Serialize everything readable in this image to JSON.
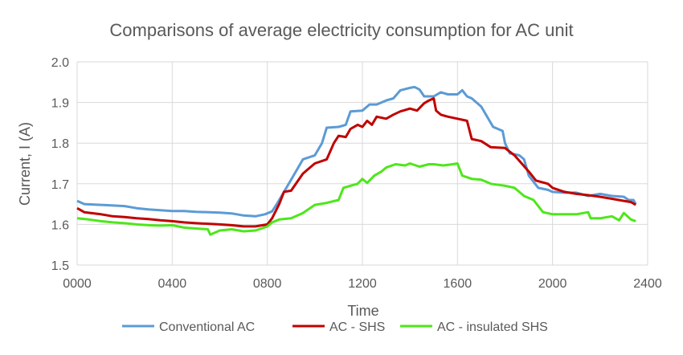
{
  "chart_data": {
    "type": "line",
    "title": "Comparisons of average electricity consumption for AC unit",
    "xlabel": "Time",
    "ylabel": "Current, I (A)",
    "xlim": [
      0,
      2400
    ],
    "ylim": [
      1.5,
      2.0
    ],
    "x_ticks": [
      0,
      400,
      800,
      1200,
      1600,
      2000,
      2400
    ],
    "x_tick_labels": [
      "0000",
      "0400",
      "0800",
      "1200",
      "1600",
      "2000",
      "2400"
    ],
    "y_ticks": [
      1.5,
      1.6,
      1.7,
      1.8,
      1.9,
      2.0
    ],
    "y_tick_labels": [
      "1.5",
      "1.6",
      "1.7",
      "1.8",
      "1.9",
      "2.0"
    ],
    "grid": true,
    "legend_position": "bottom",
    "series": [
      {
        "name": "Conventional AC",
        "color": "#5b9bd5",
        "points": [
          [
            0,
            1.658
          ],
          [
            30,
            1.65
          ],
          [
            100,
            1.648
          ],
          [
            200,
            1.645
          ],
          [
            250,
            1.64
          ],
          [
            300,
            1.637
          ],
          [
            400,
            1.633
          ],
          [
            450,
            1.633
          ],
          [
            500,
            1.631
          ],
          [
            600,
            1.629
          ],
          [
            650,
            1.627
          ],
          [
            700,
            1.622
          ],
          [
            750,
            1.62
          ],
          [
            790,
            1.625
          ],
          [
            820,
            1.632
          ],
          [
            840,
            1.65
          ],
          [
            870,
            1.68
          ],
          [
            900,
            1.71
          ],
          [
            950,
            1.76
          ],
          [
            1000,
            1.77
          ],
          [
            1030,
            1.8
          ],
          [
            1050,
            1.838
          ],
          [
            1100,
            1.84
          ],
          [
            1130,
            1.845
          ],
          [
            1150,
            1.878
          ],
          [
            1200,
            1.88
          ],
          [
            1230,
            1.895
          ],
          [
            1260,
            1.895
          ],
          [
            1300,
            1.905
          ],
          [
            1330,
            1.91
          ],
          [
            1360,
            1.93
          ],
          [
            1400,
            1.936
          ],
          [
            1420,
            1.938
          ],
          [
            1440,
            1.932
          ],
          [
            1460,
            1.915
          ],
          [
            1500,
            1.915
          ],
          [
            1530,
            1.925
          ],
          [
            1560,
            1.92
          ],
          [
            1600,
            1.92
          ],
          [
            1620,
            1.93
          ],
          [
            1640,
            1.915
          ],
          [
            1660,
            1.91
          ],
          [
            1700,
            1.89
          ],
          [
            1750,
            1.84
          ],
          [
            1790,
            1.83
          ],
          [
            1800,
            1.8
          ],
          [
            1820,
            1.775
          ],
          [
            1860,
            1.77
          ],
          [
            1880,
            1.76
          ],
          [
            1900,
            1.72
          ],
          [
            1940,
            1.69
          ],
          [
            1980,
            1.685
          ],
          [
            2000,
            1.68
          ],
          [
            2050,
            1.678
          ],
          [
            2100,
            1.678
          ],
          [
            2150,
            1.67
          ],
          [
            2200,
            1.675
          ],
          [
            2250,
            1.67
          ],
          [
            2300,
            1.668
          ],
          [
            2320,
            1.66
          ],
          [
            2340,
            1.66
          ],
          [
            2350,
            1.65
          ]
        ]
      },
      {
        "name": "AC - SHS",
        "color": "#c00000",
        "points": [
          [
            0,
            1.64
          ],
          [
            30,
            1.63
          ],
          [
            100,
            1.625
          ],
          [
            150,
            1.62
          ],
          [
            200,
            1.618
          ],
          [
            250,
            1.615
          ],
          [
            300,
            1.613
          ],
          [
            350,
            1.61
          ],
          [
            400,
            1.608
          ],
          [
            450,
            1.605
          ],
          [
            500,
            1.603
          ],
          [
            600,
            1.6
          ],
          [
            650,
            1.598
          ],
          [
            700,
            1.595
          ],
          [
            750,
            1.595
          ],
          [
            800,
            1.6
          ],
          [
            820,
            1.615
          ],
          [
            850,
            1.65
          ],
          [
            870,
            1.68
          ],
          [
            900,
            1.683
          ],
          [
            950,
            1.725
          ],
          [
            1000,
            1.75
          ],
          [
            1050,
            1.76
          ],
          [
            1080,
            1.8
          ],
          [
            1100,
            1.818
          ],
          [
            1130,
            1.815
          ],
          [
            1150,
            1.835
          ],
          [
            1180,
            1.845
          ],
          [
            1200,
            1.84
          ],
          [
            1220,
            1.855
          ],
          [
            1240,
            1.845
          ],
          [
            1260,
            1.865
          ],
          [
            1300,
            1.86
          ],
          [
            1330,
            1.87
          ],
          [
            1360,
            1.878
          ],
          [
            1400,
            1.885
          ],
          [
            1430,
            1.88
          ],
          [
            1460,
            1.898
          ],
          [
            1480,
            1.905
          ],
          [
            1500,
            1.91
          ],
          [
            1510,
            1.88
          ],
          [
            1530,
            1.87
          ],
          [
            1560,
            1.865
          ],
          [
            1600,
            1.86
          ],
          [
            1640,
            1.855
          ],
          [
            1660,
            1.81
          ],
          [
            1700,
            1.805
          ],
          [
            1740,
            1.79
          ],
          [
            1800,
            1.788
          ],
          [
            1840,
            1.77
          ],
          [
            1870,
            1.75
          ],
          [
            1900,
            1.73
          ],
          [
            1930,
            1.708
          ],
          [
            1980,
            1.7
          ],
          [
            2000,
            1.69
          ],
          [
            2050,
            1.68
          ],
          [
            2100,
            1.675
          ],
          [
            2150,
            1.672
          ],
          [
            2200,
            1.668
          ],
          [
            2250,
            1.663
          ],
          [
            2300,
            1.658
          ],
          [
            2330,
            1.655
          ],
          [
            2350,
            1.648
          ]
        ]
      },
      {
        "name": "AC - insulated SHS",
        "color": "#4de71a",
        "points": [
          [
            0,
            1.615
          ],
          [
            50,
            1.612
          ],
          [
            100,
            1.608
          ],
          [
            150,
            1.605
          ],
          [
            200,
            1.603
          ],
          [
            250,
            1.6
          ],
          [
            300,
            1.598
          ],
          [
            350,
            1.597
          ],
          [
            400,
            1.598
          ],
          [
            450,
            1.592
          ],
          [
            500,
            1.59
          ],
          [
            550,
            1.588
          ],
          [
            560,
            1.575
          ],
          [
            600,
            1.585
          ],
          [
            650,
            1.588
          ],
          [
            700,
            1.583
          ],
          [
            750,
            1.585
          ],
          [
            800,
            1.595
          ],
          [
            820,
            1.605
          ],
          [
            850,
            1.612
          ],
          [
            900,
            1.615
          ],
          [
            950,
            1.628
          ],
          [
            1000,
            1.648
          ],
          [
            1050,
            1.653
          ],
          [
            1100,
            1.66
          ],
          [
            1120,
            1.69
          ],
          [
            1150,
            1.695
          ],
          [
            1180,
            1.7
          ],
          [
            1200,
            1.712
          ],
          [
            1220,
            1.702
          ],
          [
            1250,
            1.72
          ],
          [
            1280,
            1.73
          ],
          [
            1300,
            1.74
          ],
          [
            1340,
            1.748
          ],
          [
            1380,
            1.745
          ],
          [
            1400,
            1.75
          ],
          [
            1440,
            1.742
          ],
          [
            1480,
            1.748
          ],
          [
            1500,
            1.748
          ],
          [
            1540,
            1.745
          ],
          [
            1580,
            1.748
          ],
          [
            1600,
            1.75
          ],
          [
            1620,
            1.72
          ],
          [
            1660,
            1.712
          ],
          [
            1700,
            1.71
          ],
          [
            1740,
            1.7
          ],
          [
            1800,
            1.695
          ],
          [
            1840,
            1.69
          ],
          [
            1880,
            1.67
          ],
          [
            1920,
            1.66
          ],
          [
            1960,
            1.63
          ],
          [
            2000,
            1.625
          ],
          [
            2050,
            1.625
          ],
          [
            2100,
            1.625
          ],
          [
            2150,
            1.63
          ],
          [
            2160,
            1.615
          ],
          [
            2200,
            1.615
          ],
          [
            2250,
            1.62
          ],
          [
            2280,
            1.61
          ],
          [
            2300,
            1.628
          ],
          [
            2330,
            1.612
          ],
          [
            2350,
            1.608
          ]
        ]
      }
    ]
  }
}
